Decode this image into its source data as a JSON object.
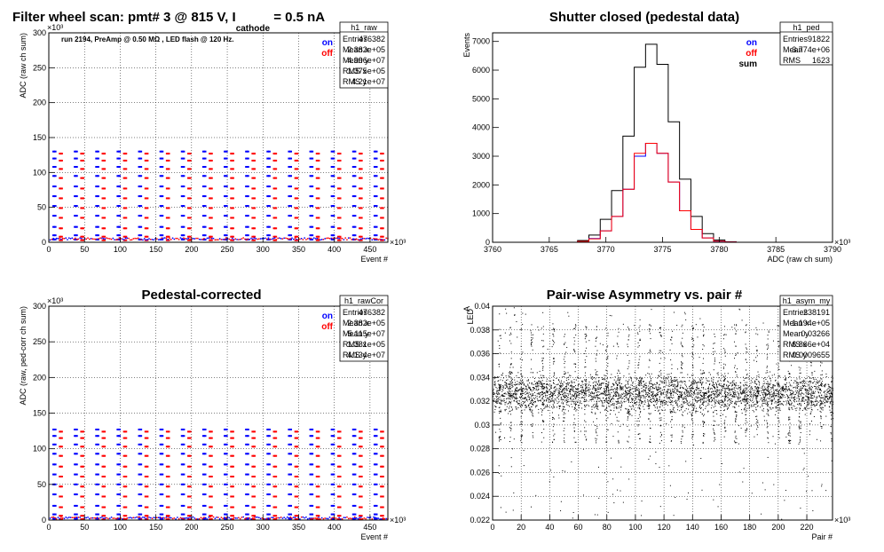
{
  "canvas_title": {
    "prefix": "Filter wheel scan: pmt#   3 @   815 V, I",
    "subscript": "cathode",
    "suffix": " = 0.5 nA"
  },
  "colors": {
    "on": "#0000ff",
    "off": "#ff0000",
    "sum": "#000000",
    "grid": "#000000"
  },
  "chart_data": [
    {
      "id": "h1_raw",
      "type": "scatter",
      "title": "",
      "xlabel": "Event #",
      "ylabel": "ADC (raw ch sum)",
      "x_exponent": "×10³",
      "y_exponent": "×10³",
      "xlim": [
        0,
        475
      ],
      "ylim": [
        0,
        300
      ],
      "xticks": [
        0,
        50,
        100,
        150,
        200,
        250,
        300,
        350,
        400,
        450
      ],
      "yticks": [
        0,
        50,
        100,
        150,
        200,
        250,
        300
      ],
      "grid": true,
      "note": "run 2194, PreAmp @ 0.50 MΩ , LED flash @  120 Hz.",
      "legend": [
        {
          "label": "on",
          "color": "#0000ff"
        },
        {
          "label": "off",
          "color": "#ff0000"
        }
      ],
      "stats": {
        "name": "h1_raw",
        "rows": [
          [
            "Entries",
            "476382"
          ],
          [
            "Mean x",
            "2.382e+05"
          ],
          [
            "Mean y",
            "4.996e+07"
          ],
          [
            "RMS x",
            "1.375e+05"
          ],
          [
            "RMS y",
            "4.21e+07"
          ]
        ]
      },
      "scan": {
        "period": 30,
        "start": 5,
        "on_levels": [
          130,
          120,
          108,
          95,
          80,
          66,
          52,
          38,
          22,
          10,
          4
        ],
        "off_levels": [
          127,
          117,
          105,
          92,
          77,
          63,
          49,
          35,
          20,
          8,
          3
        ],
        "baseline": 3
      }
    },
    {
      "id": "h1_ped",
      "type": "line",
      "title": "Shutter closed (pedestal data)",
      "xlabel": "ADC (raw ch sum)",
      "ylabel": "Events",
      "x_exponent": "×10³",
      "xlim": [
        3760,
        3790
      ],
      "ylim": [
        0,
        7300
      ],
      "xticks": [
        3760,
        3765,
        3770,
        3775,
        3780,
        3785,
        3790
      ],
      "yticks": [
        0,
        1000,
        2000,
        3000,
        4000,
        5000,
        6000,
        7000
      ],
      "grid": false,
      "legend": [
        {
          "label": "on",
          "color": "#0000ff"
        },
        {
          "label": "off",
          "color": "#ff0000"
        },
        {
          "label": "sum",
          "color": "#000000"
        }
      ],
      "stats": {
        "name": "h1_ped",
        "rows": [
          [
            "Entries",
            "91822"
          ],
          [
            "Mean",
            "3.774e+06"
          ],
          [
            "RMS",
            "1623"
          ]
        ]
      },
      "series": [
        {
          "name": "sum",
          "color": "#000000",
          "x": [
            3768,
            3769,
            3770,
            3771,
            3772,
            3773,
            3774,
            3775,
            3776,
            3777,
            3778,
            3779,
            3780,
            3781
          ],
          "y": [
            60,
            250,
            800,
            1800,
            3700,
            6100,
            6900,
            6200,
            4200,
            2200,
            900,
            300,
            80,
            20
          ]
        },
        {
          "name": "on",
          "color": "#0000ff",
          "x": [
            3768,
            3769,
            3770,
            3771,
            3772,
            3773,
            3774,
            3775,
            3776,
            3777,
            3778,
            3779,
            3780,
            3781
          ],
          "y": [
            30,
            130,
            400,
            900,
            1850,
            3000,
            3450,
            3100,
            2100,
            1100,
            450,
            150,
            40,
            10
          ]
        },
        {
          "name": "off",
          "color": "#ff0000",
          "x": [
            3768,
            3769,
            3770,
            3771,
            3772,
            3773,
            3774,
            3775,
            3776,
            3777,
            3778,
            3779,
            3780,
            3781
          ],
          "y": [
            30,
            120,
            400,
            900,
            1850,
            3100,
            3450,
            3100,
            2100,
            1100,
            450,
            150,
            40,
            10
          ]
        }
      ]
    },
    {
      "id": "h1_rawCor",
      "type": "scatter",
      "title": "Pedestal-corrected",
      "xlabel": "Event #",
      "ylabel": "ADC (raw, ped-corr ch sum)",
      "x_exponent": "×10³",
      "y_exponent": "×10³",
      "xlim": [
        0,
        475
      ],
      "ylim": [
        0,
        300
      ],
      "xticks": [
        0,
        50,
        100,
        150,
        200,
        250,
        300,
        350,
        400,
        450
      ],
      "yticks": [
        0,
        50,
        100,
        150,
        200,
        250,
        300
      ],
      "grid": true,
      "legend": [
        {
          "label": "on",
          "color": "#0000ff"
        },
        {
          "label": "off",
          "color": "#ff0000"
        }
      ],
      "stats": {
        "name": "h1_rawCor",
        "rows": [
          [
            "Entries",
            "476382"
          ],
          [
            "Mean x",
            "2.382e+05"
          ],
          [
            "Mean y",
            "5.115e+07"
          ],
          [
            "RMS x",
            "1.381e+05"
          ],
          [
            "RMS y",
            "4.134e+07"
          ]
        ]
      },
      "scan": {
        "period": 30,
        "start": 5,
        "on_levels": [
          127,
          118,
          106,
          93,
          78,
          64,
          50,
          36,
          20,
          8,
          2
        ],
        "off_levels": [
          124,
          115,
          103,
          90,
          75,
          61,
          47,
          33,
          18,
          6,
          1
        ],
        "baseline": 1
      }
    },
    {
      "id": "h1_asym_my",
      "type": "scatter",
      "title": "Pair-wise Asymmetry vs. pair #",
      "xlabel": "Pair #",
      "ylabel": "A",
      "ylabel_sub": "LED",
      "x_exponent": "×10³",
      "xlim": [
        0,
        238
      ],
      "ylim": [
        0.022,
        0.04
      ],
      "xticks": [
        0,
        20,
        40,
        60,
        80,
        100,
        120,
        140,
        160,
        180,
        200,
        220
      ],
      "yticks": [
        0.022,
        0.024,
        0.026,
        0.028,
        0.03,
        0.032,
        0.034,
        0.036,
        0.038,
        0.04
      ],
      "grid": true,
      "stats": {
        "name": "h1_asym_my",
        "rows": [
          [
            "Entries",
            "238191"
          ],
          [
            "Mean x",
            "1.194e+05"
          ],
          [
            "Mean y",
            "0.03266"
          ],
          [
            "RMS x",
            "6.866e+04"
          ],
          [
            "RMS y",
            "0.0009655"
          ]
        ]
      },
      "band": {
        "center": 0.0327,
        "halfwidth": 0.0011,
        "spike_period": 7.5,
        "spike_up": 0.0385,
        "spike_down": 0.0285
      }
    }
  ]
}
